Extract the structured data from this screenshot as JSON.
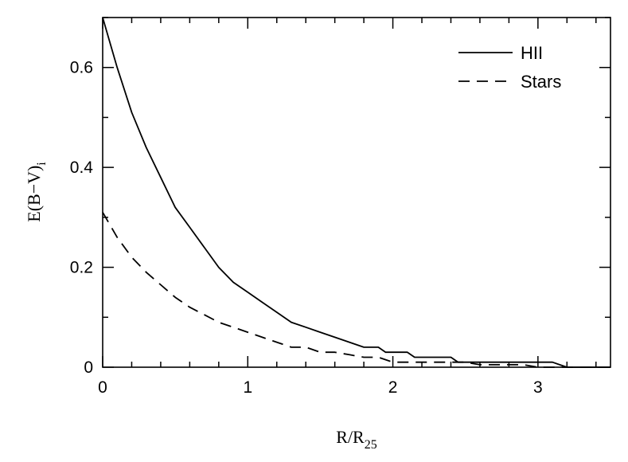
{
  "chart_data": {
    "type": "line",
    "title": "",
    "xlabel": {
      "main": "R/R",
      "sub": "25"
    },
    "ylabel": {
      "main": "E(B−V)",
      "sub": "i"
    },
    "xlim": [
      0,
      3.5
    ],
    "ylim": [
      0,
      0.7
    ],
    "xticks": [
      0,
      1,
      2,
      3
    ],
    "xtick_labels": [
      "0",
      "1",
      "2",
      "3"
    ],
    "xminor_step": 0.2,
    "yticks": [
      0,
      0.2,
      0.4,
      0.6
    ],
    "ytick_labels": [
      "0",
      "0.2",
      "0.4",
      "0.6"
    ],
    "yminor_step": 0.1,
    "grid": false,
    "legend_position": "top-right",
    "series": [
      {
        "name": "HII",
        "style": "solid",
        "color": "#000000",
        "x": [
          0,
          0.1,
          0.2,
          0.3,
          0.4,
          0.5,
          0.6,
          0.7,
          0.8,
          0.9,
          1.0,
          1.1,
          1.2,
          1.3,
          1.4,
          1.5,
          1.6,
          1.7,
          1.8,
          1.9,
          1.95,
          2.0,
          2.1,
          2.15,
          2.2,
          2.3,
          2.4,
          2.45,
          2.5,
          2.6,
          2.7,
          2.8,
          2.9,
          3.0,
          3.1,
          3.15,
          3.2,
          3.3,
          3.4,
          3.5
        ],
        "y": [
          0.7,
          0.6,
          0.51,
          0.44,
          0.38,
          0.32,
          0.28,
          0.24,
          0.2,
          0.17,
          0.15,
          0.13,
          0.11,
          0.09,
          0.08,
          0.07,
          0.06,
          0.05,
          0.04,
          0.04,
          0.03,
          0.03,
          0.03,
          0.02,
          0.02,
          0.02,
          0.02,
          0.01,
          0.01,
          0.01,
          0.01,
          0.01,
          0.01,
          0.01,
          0.01,
          0.005,
          0.0,
          0.0,
          0.0,
          0.0
        ]
      },
      {
        "name": "Stars",
        "style": "dashed",
        "color": "#000000",
        "x": [
          0,
          0.1,
          0.2,
          0.3,
          0.4,
          0.5,
          0.6,
          0.7,
          0.8,
          0.9,
          1.0,
          1.1,
          1.2,
          1.3,
          1.4,
          1.5,
          1.6,
          1.7,
          1.8,
          1.9,
          2.0,
          2.1,
          2.2,
          2.3,
          2.4,
          2.5,
          2.6,
          2.7,
          2.8,
          2.9,
          3.0,
          3.1,
          3.2,
          3.3,
          3.4,
          3.5
        ],
        "y": [
          0.31,
          0.26,
          0.22,
          0.19,
          0.165,
          0.14,
          0.12,
          0.105,
          0.09,
          0.08,
          0.07,
          0.06,
          0.05,
          0.04,
          0.04,
          0.03,
          0.03,
          0.025,
          0.02,
          0.02,
          0.01,
          0.01,
          0.01,
          0.01,
          0.01,
          0.01,
          0.005,
          0.005,
          0.005,
          0.005,
          0.0,
          0.0,
          0.0,
          0.0,
          0.0,
          0.0
        ]
      }
    ]
  }
}
